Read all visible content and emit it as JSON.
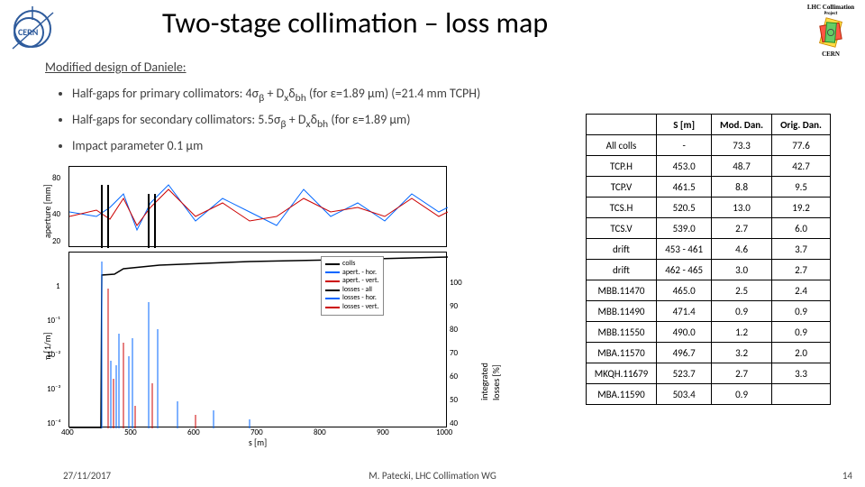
{
  "branding": {
    "cern_label": "CERN",
    "lhc_title": "LHC Collimation",
    "lhc_sub": "Project",
    "lhc_footer": "CERN"
  },
  "title": "Two-stage collimation – loss map",
  "body": {
    "line0": "Modified design of Daniele:",
    "bullet1_a": "Half-gaps for primary collimators:  ",
    "bullet1_b": "4σ",
    "bullet1_c": " + D",
    "bullet1_d": "δ",
    "bullet1_e": " (for ε=1.89 μm) (=21.4 mm TCPH)",
    "bullet2_a": "Half-gaps for secondary collimators: 5.5σ",
    "bullet2_b": " + D",
    "bullet2_c": "δ",
    "bullet2_d": " (for ε=1.89 μm)",
    "bullet3": "Impact parameter 0.1 μm",
    "sub_beta": "β",
    "sub_x": "x",
    "sub_bh": "bh"
  },
  "chart": {
    "panel1": {
      "ylabel": "aperture [mm]",
      "yticks": [
        "20",
        "40",
        "80"
      ],
      "xlim": [
        400,
        1000
      ]
    },
    "panel2": {
      "ylabel": "η [1/m]",
      "y2label": "integrated losses [%]",
      "yticks": [
        "10⁻⁴",
        "10⁻³",
        "10⁻²",
        "10⁻¹",
        "1"
      ],
      "y2ticks": [
        "40",
        "50",
        "60",
        "70",
        "80",
        "90",
        "100"
      ],
      "xticks": [
        "400",
        "500",
        "600",
        "700",
        "800",
        "900",
        "1000"
      ],
      "xlabel": "s [m]"
    },
    "legend": [
      {
        "label": "colls",
        "color": "#000000"
      },
      {
        "label": "apert. - hor.",
        "color": "#0066ff"
      },
      {
        "label": "apert. - vert.",
        "color": "#cc0000"
      },
      {
        "label": "losses - all",
        "color": "#000000"
      },
      {
        "label": "losses - hor.",
        "color": "#0066ff"
      },
      {
        "label": "losses - vert.",
        "color": "#cc0000"
      }
    ],
    "colors": {
      "colls": "#000000",
      "apert_h": "#0066ff",
      "apert_v": "#cc0000",
      "losses_all": "#000000",
      "losses_h": "#0066ff",
      "losses_v": "#cc0000",
      "grid": "#cccccc",
      "background": "#ffffff"
    }
  },
  "table": {
    "headers": [
      "",
      "S [m]",
      "Mod. Dan.",
      "Orig. Dan."
    ],
    "rows": [
      [
        "All colls",
        "-",
        "73.3",
        "77.6"
      ],
      [
        "TCP.H",
        "453.0",
        "48.7",
        "42.7"
      ],
      [
        "TCP.V",
        "461.5",
        "8.8",
        "9.5"
      ],
      [
        "TCS.H",
        "520.5",
        "13.0",
        "19.2"
      ],
      [
        "TCS.V",
        "539.0",
        "2.7",
        "6.0"
      ],
      [
        "drift",
        "453 - 461",
        "4.6",
        "3.7"
      ],
      [
        "drift",
        "462 - 465",
        "3.0",
        "2.7"
      ],
      [
        "MBB.11470",
        "465.0",
        "2.5",
        "2.4"
      ],
      [
        "MBB.11490",
        "471.4",
        "0.9",
        "0.9"
      ],
      [
        "MBB.11550",
        "490.0",
        "1.2",
        "0.9"
      ],
      [
        "MBA.11570",
        "496.7",
        "3.2",
        "2.0"
      ],
      [
        "MKQH.11679",
        "523.7",
        "2.7",
        "3.3"
      ],
      [
        "MBA.11590",
        "503.4",
        "0.9",
        ""
      ]
    ]
  },
  "footer": {
    "date": "27/11/2017",
    "author": "M. Patecki, LHC Collimation WG",
    "page": "14"
  }
}
